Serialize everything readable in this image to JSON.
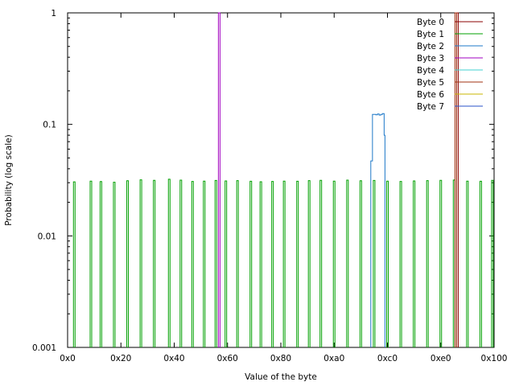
{
  "chart_data": {
    "type": "line",
    "title": "",
    "xlabel": "Value of the byte",
    "ylabel": "Probability (log scale)",
    "yscale": "log",
    "xlim": [
      0,
      256
    ],
    "ylim": [
      0.001,
      1
    ],
    "x_ticks": [
      {
        "value": 0,
        "label": "0x0"
      },
      {
        "value": 32,
        "label": "0x20"
      },
      {
        "value": 64,
        "label": "0x40"
      },
      {
        "value": 96,
        "label": "0x60"
      },
      {
        "value": 128,
        "label": "0x80"
      },
      {
        "value": 160,
        "label": "0xa0"
      },
      {
        "value": 192,
        "label": "0xc0"
      },
      {
        "value": 224,
        "label": "0xe0"
      },
      {
        "value": 256,
        "label": "0x100"
      }
    ],
    "y_ticks": [
      {
        "value": 0.001,
        "label": "0.001"
      },
      {
        "value": 0.01,
        "label": "0.01"
      },
      {
        "value": 0.1,
        "label": "0.1"
      },
      {
        "value": 1,
        "label": "1"
      }
    ],
    "legend_position": "top-right",
    "grid": false,
    "series": [
      {
        "name": "Byte 0",
        "color": "#8b0000",
        "spikes": [
          {
            "x": 234,
            "y": 1
          }
        ]
      },
      {
        "name": "Byte 1",
        "color": "#00a000",
        "spikes": [
          {
            "x": 4,
            "y": 0.0305
          },
          {
            "x": 14,
            "y": 0.031
          },
          {
            "x": 20,
            "y": 0.0307
          },
          {
            "x": 28,
            "y": 0.0303
          },
          {
            "x": 36,
            "y": 0.0312
          },
          {
            "x": 44,
            "y": 0.0318
          },
          {
            "x": 52,
            "y": 0.0315
          },
          {
            "x": 61,
            "y": 0.0322
          },
          {
            "x": 68,
            "y": 0.0316
          },
          {
            "x": 75,
            "y": 0.0308
          },
          {
            "x": 82,
            "y": 0.031
          },
          {
            "x": 89,
            "y": 0.0314
          },
          {
            "x": 95,
            "y": 0.0311
          },
          {
            "x": 102,
            "y": 0.0313
          },
          {
            "x": 110,
            "y": 0.0309
          },
          {
            "x": 116,
            "y": 0.0306
          },
          {
            "x": 123,
            "y": 0.0308
          },
          {
            "x": 130,
            "y": 0.031
          },
          {
            "x": 138,
            "y": 0.0309
          },
          {
            "x": 145,
            "y": 0.0313
          },
          {
            "x": 152,
            "y": 0.0315
          },
          {
            "x": 160,
            "y": 0.031
          },
          {
            "x": 168,
            "y": 0.0316
          },
          {
            "x": 176,
            "y": 0.0312
          },
          {
            "x": 184,
            "y": 0.0314
          },
          {
            "x": 192,
            "y": 0.031
          },
          {
            "x": 200,
            "y": 0.0308
          },
          {
            "x": 208,
            "y": 0.0311
          },
          {
            "x": 216,
            "y": 0.0313
          },
          {
            "x": 224,
            "y": 0.0315
          },
          {
            "x": 232,
            "y": 0.0317
          },
          {
            "x": 240,
            "y": 0.031
          },
          {
            "x": 248,
            "y": 0.0309
          },
          {
            "x": 255,
            "y": 0.0315
          }
        ]
      },
      {
        "name": "Byte 2",
        "color": "#1e78c8",
        "steps": [
          {
            "x": 182,
            "y": 0.047
          },
          {
            "x": 183,
            "y": 0.123
          },
          {
            "x": 185,
            "y": 0.122
          },
          {
            "x": 186,
            "y": 0.124
          },
          {
            "x": 187,
            "y": 0.121
          },
          {
            "x": 188,
            "y": 0.123
          },
          {
            "x": 189,
            "y": 0.125
          },
          {
            "x": 190,
            "y": 0.08
          }
        ]
      },
      {
        "name": "Byte 3",
        "color": "#a000c0",
        "spikes": [
          {
            "x": 91,
            "y": 1
          }
        ]
      },
      {
        "name": "Byte 4",
        "color": "#40d0d0",
        "spikes": []
      },
      {
        "name": "Byte 5",
        "color": "#a03010",
        "spikes": [
          {
            "x": 233,
            "y": 1
          }
        ]
      },
      {
        "name": "Byte 6",
        "color": "#c8b400",
        "spikes": []
      },
      {
        "name": "Byte 7",
        "color": "#2850c8",
        "spikes": []
      }
    ]
  }
}
